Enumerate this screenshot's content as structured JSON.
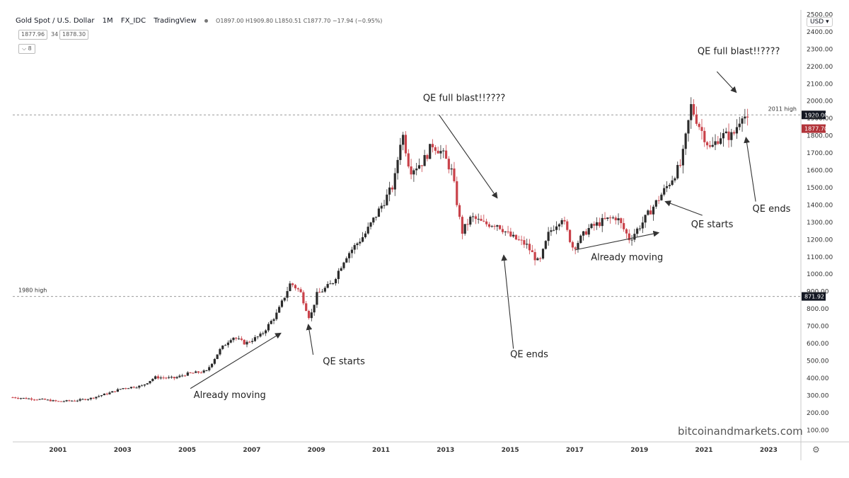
{
  "header": {
    "symbol": "Gold Spot / U.S. Dollar",
    "interval": "1M",
    "exchange": "FX_IDC",
    "source": "TradingView",
    "ohlc": "O1897.00 H1909.80 L1850.51 C1877.70 −17.94 (−0.95%)",
    "bid": "1877.96",
    "spread": "34",
    "ask": "1878.30",
    "collapse_label": "⌵ 8"
  },
  "currency_button": "USD",
  "watermark": "bitcoinandmarkets.com",
  "icons": {
    "settings": "gear-icon",
    "status": "dot-icon"
  },
  "chart_data": {
    "type": "candlestick",
    "colors": {
      "up": "#2b2b2b",
      "down": "#c9424a",
      "price_badge": "#b2343a",
      "level_badge": "#131722"
    },
    "y_axis": {
      "ylim": [
        40,
        2510
      ],
      "ticks": [
        100,
        200,
        300,
        400,
        500,
        600,
        700,
        800,
        900,
        1000,
        1100,
        1200,
        1300,
        1400,
        1500,
        1600,
        1700,
        1800,
        1900,
        2000,
        2100,
        2200,
        2300,
        2400,
        2500
      ],
      "tick_labels": [
        "100.00",
        "200.00",
        "300.00",
        "400.00",
        "500.00",
        "600.00",
        "700.00",
        "800.00",
        "900.00",
        "1000.00",
        "1100.00",
        "1200.00",
        "1300.00",
        "1400.00",
        "1500.00",
        "1600.00",
        "1700.00",
        "1800.00",
        "1900.00",
        "2000.00",
        "2100.00",
        "2200.00",
        "2300.00",
        "2400.00",
        "2500.00"
      ]
    },
    "x_axis": {
      "xlim": [
        1999.6,
        2024.0
      ],
      "ticks": [
        2001,
        2003,
        2005,
        2007,
        2009,
        2011,
        2013,
        2015,
        2017,
        2019,
        2021,
        2023
      ],
      "tick_labels": [
        "2001",
        "2003",
        "2005",
        "2007",
        "2009",
        "2011",
        "2013",
        "2015",
        "2017",
        "2019",
        "2021",
        "2023"
      ]
    },
    "horizontal_levels": [
      {
        "name": "2011 high",
        "value": 1920,
        "badge": "1920.00"
      },
      {
        "name": "1980 high",
        "value": 871.92,
        "badge": "871.92"
      }
    ],
    "last_price": {
      "value": 1877.7,
      "badge": "1877.70"
    },
    "price_path": [
      [
        1999.6,
        289
      ],
      [
        2000.0,
        283
      ],
      [
        2000.6,
        275
      ],
      [
        2001.0,
        265
      ],
      [
        2001.6,
        272
      ],
      [
        2002.0,
        283
      ],
      [
        2002.6,
        315
      ],
      [
        2003.0,
        342
      ],
      [
        2003.6,
        355
      ],
      [
        2004.0,
        405
      ],
      [
        2004.6,
        400
      ],
      [
        2005.0,
        425
      ],
      [
        2005.6,
        440
      ],
      [
        2006.0,
        560
      ],
      [
        2006.4,
        640
      ],
      [
        2006.8,
        600
      ],
      [
        2007.3,
        650
      ],
      [
        2007.8,
        780
      ],
      [
        2008.2,
        950
      ],
      [
        2008.5,
        900
      ],
      [
        2008.8,
        740
      ],
      [
        2009.0,
        880
      ],
      [
        2009.5,
        950
      ],
      [
        2009.9,
        1100
      ],
      [
        2010.5,
        1230
      ],
      [
        2011.0,
        1390
      ],
      [
        2011.4,
        1520
      ],
      [
        2011.65,
        1830
      ],
      [
        2011.9,
        1600
      ],
      [
        2012.3,
        1650
      ],
      [
        2012.6,
        1750
      ],
      [
        2012.9,
        1700
      ],
      [
        2013.2,
        1590
      ],
      [
        2013.5,
        1240
      ],
      [
        2013.8,
        1330
      ],
      [
        2014.2,
        1290
      ],
      [
        2014.6,
        1290
      ],
      [
        2015.0,
        1220
      ],
      [
        2015.5,
        1170
      ],
      [
        2015.9,
        1060
      ],
      [
        2016.2,
        1240
      ],
      [
        2016.6,
        1330
      ],
      [
        2016.95,
        1150
      ],
      [
        2017.4,
        1260
      ],
      [
        2017.9,
        1310
      ],
      [
        2018.3,
        1330
      ],
      [
        2018.7,
        1200
      ],
      [
        2019.1,
        1300
      ],
      [
        2019.5,
        1410
      ],
      [
        2019.9,
        1520
      ],
      [
        2020.3,
        1640
      ],
      [
        2020.6,
        1970
      ],
      [
        2020.8,
        1880
      ],
      [
        2021.2,
        1720
      ],
      [
        2021.5,
        1800
      ],
      [
        2021.9,
        1800
      ],
      [
        2022.2,
        1940
      ],
      [
        2022.35,
        1877
      ]
    ],
    "annotations": [
      {
        "text": "Already moving",
        "x": 2005.2,
        "y": 285,
        "arrow_from": [
          2005.1,
          340
        ],
        "arrow_to": [
          2007.9,
          660
        ]
      },
      {
        "text": "QE starts",
        "x": 2009.2,
        "y": 480,
        "arrow_from": [
          2008.9,
          535
        ],
        "arrow_to": [
          2008.75,
          710
        ]
      },
      {
        "text": "QE full blast!!????",
        "x": 2012.3,
        "y": 2000,
        "arrow_from": [
          2012.8,
          1920
        ],
        "arrow_to": [
          2014.6,
          1440
        ]
      },
      {
        "text": "QE ends",
        "x": 2015.0,
        "y": 520,
        "arrow_from": [
          2015.1,
          570
        ],
        "arrow_to": [
          2014.8,
          1110
        ]
      },
      {
        "text": "Already moving",
        "x": 2017.5,
        "y": 1080,
        "arrow_from": [
          2017.0,
          1140
        ],
        "arrow_to": [
          2019.6,
          1240
        ]
      },
      {
        "text": "QE starts",
        "x": 2020.6,
        "y": 1270,
        "arrow_from": [
          2020.95,
          1340
        ],
        "arrow_to": [
          2019.8,
          1420
        ]
      },
      {
        "text": "QE full blast!!????",
        "x": 2020.8,
        "y": 2270,
        "arrow_from": [
          2021.4,
          2170
        ],
        "arrow_to": [
          2022.0,
          2050
        ]
      },
      {
        "text": "QE ends",
        "x": 2022.5,
        "y": 1360,
        "arrow_from": [
          2022.6,
          1420
        ],
        "arrow_to": [
          2022.3,
          1790
        ]
      }
    ]
  }
}
